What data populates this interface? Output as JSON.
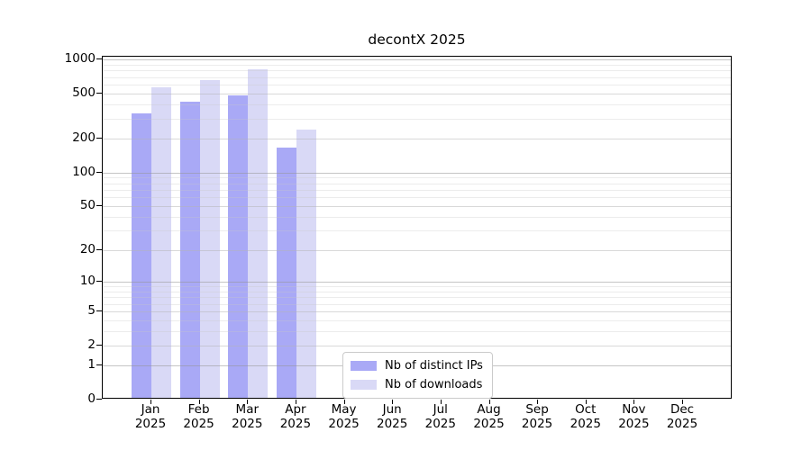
{
  "page": {
    "background": "#ffffff"
  },
  "chart_data": {
    "type": "bar",
    "title": "decontX 2025",
    "year_label": "2025",
    "categories": [
      "Jan",
      "Feb",
      "Mar",
      "Apr",
      "May",
      "Jun",
      "Jul",
      "Aug",
      "Sep",
      "Oct",
      "Nov",
      "Dec"
    ],
    "series": [
      {
        "name": "Nb of distinct IPs",
        "color": "#a9a9f6",
        "values": [
          323,
          412,
          467,
          162,
          null,
          null,
          null,
          null,
          null,
          null,
          null,
          null
        ]
      },
      {
        "name": "Nb of downloads",
        "color": "#d9d9f6",
        "values": [
          549,
          638,
          791,
          230,
          null,
          null,
          null,
          null,
          null,
          null,
          null,
          null
        ]
      }
    ],
    "yticks": [
      0,
      1,
      2,
      5,
      10,
      20,
      50,
      100,
      200,
      500,
      1000
    ],
    "yscale": "log10(value+1)",
    "ylim": [
      0,
      1000
    ],
    "grid": "horizontal, log minor gridlines",
    "legend_position": "bottom-center-inside",
    "axis_color": "#000000",
    "gridline_colors": {
      "decade": "#c6c6c6",
      "labeled": "#d9d9d9",
      "minor": "#ececec"
    }
  }
}
